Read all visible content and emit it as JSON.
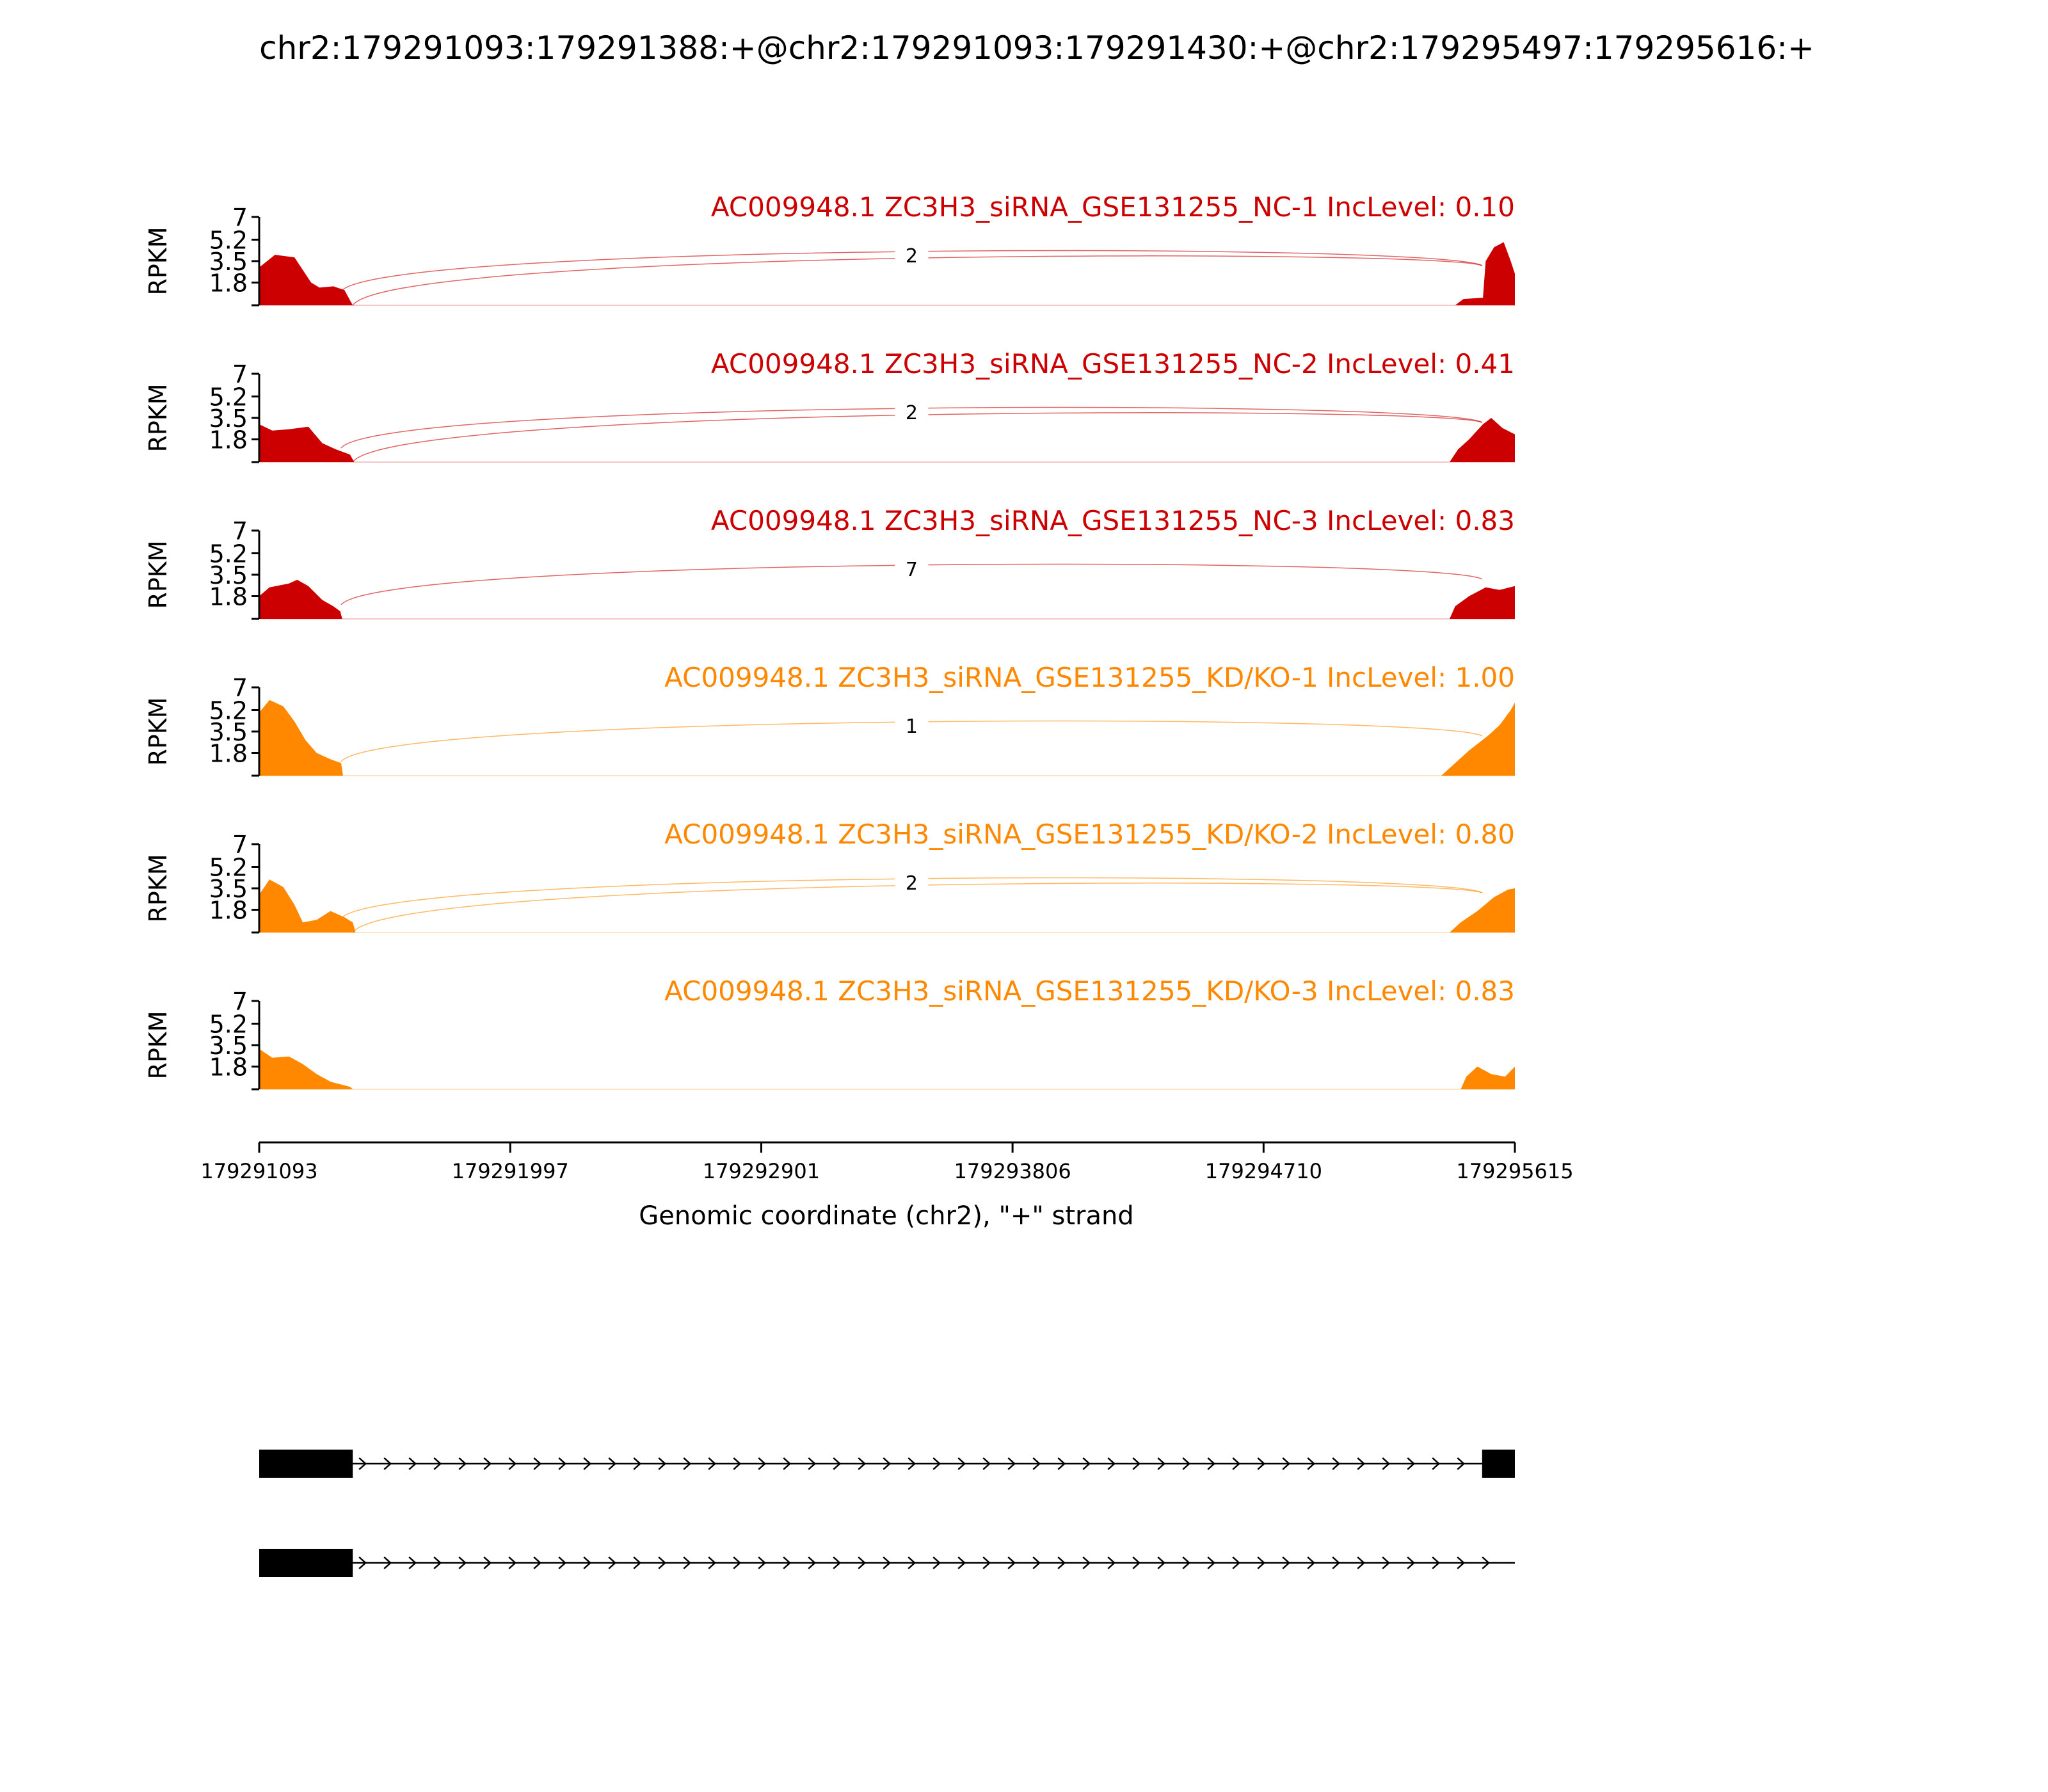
{
  "chart_data": {
    "type": "area",
    "title": "chr2:179291093:179291388:+@chr2:179291093:179291430:+@chr2:179295497:179295616:+",
    "xlabel": "Genomic coordinate (chr2), \"+\" strand",
    "ylabel": "RPKM",
    "xlim": [
      179291093,
      179295615
    ],
    "ylim": [
      0,
      7
    ],
    "x_ticks": [
      "179291093",
      "179291997",
      "179292901",
      "179293806",
      "179294710",
      "179295615"
    ],
    "x_tick_values": [
      179291093,
      179291997,
      179292901,
      179293806,
      179294710,
      179295615
    ],
    "y_ticks": [
      "7",
      "5.2",
      "3.5",
      "1.8"
    ],
    "y_tick_values": [
      7,
      5.2,
      3.5,
      1.8
    ],
    "colors": {
      "NC": "#cc0000",
      "KD": "#ff8800"
    },
    "series": [
      {
        "name": "AC009948.1 ZC3H3_siRNA_GSE131255_NC-1 IncLevel: 0.10",
        "color": "#cc0000",
        "coverage": [
          [
            179291093,
            3.0
          ],
          [
            179291150,
            4.0
          ],
          [
            179291220,
            3.8
          ],
          [
            179291250,
            2.8
          ],
          [
            179291280,
            1.8
          ],
          [
            179291310,
            1.4
          ],
          [
            179291360,
            1.5
          ],
          [
            179291400,
            1.2
          ],
          [
            179291430,
            0.0
          ],
          [
            179295400,
            0.0
          ],
          [
            179295430,
            0.5
          ],
          [
            179295500,
            0.6
          ],
          [
            179295510,
            3.5
          ],
          [
            179295540,
            4.6
          ],
          [
            179295575,
            5.0
          ],
          [
            179295600,
            3.5
          ],
          [
            179295615,
            2.5
          ]
        ],
        "junctions": [
          {
            "start": 179291388,
            "end": 179295497,
            "count": "2"
          },
          {
            "start": 179291430,
            "end": 179295497,
            "count": "2"
          }
        ]
      },
      {
        "name": "AC009948.1 ZC3H3_siRNA_GSE131255_NC-2 IncLevel: 0.41",
        "color": "#cc0000",
        "coverage": [
          [
            179291093,
            3.0
          ],
          [
            179291140,
            2.5
          ],
          [
            179291200,
            2.6
          ],
          [
            179291270,
            2.8
          ],
          [
            179291320,
            1.5
          ],
          [
            179291370,
            1.0
          ],
          [
            179291420,
            0.6
          ],
          [
            179291435,
            0.0
          ],
          [
            179295380,
            0.0
          ],
          [
            179295410,
            1.0
          ],
          [
            179295450,
            1.8
          ],
          [
            179295500,
            3.0
          ],
          [
            179295530,
            3.5
          ],
          [
            179295570,
            2.7
          ],
          [
            179295615,
            2.2
          ]
        ],
        "junctions": [
          {
            "start": 179291388,
            "end": 179295497,
            "count": "2"
          },
          {
            "start": 179291430,
            "end": 179295497,
            "count": "2"
          }
        ]
      },
      {
        "name": "AC009948.1 ZC3H3_siRNA_GSE131255_NC-3 IncLevel: 0.83",
        "color": "#cc0000",
        "coverage": [
          [
            179291093,
            1.8
          ],
          [
            179291130,
            2.5
          ],
          [
            179291200,
            2.8
          ],
          [
            179291230,
            3.1
          ],
          [
            179291270,
            2.6
          ],
          [
            179291320,
            1.5
          ],
          [
            179291360,
            1.0
          ],
          [
            179291385,
            0.6
          ],
          [
            179291392,
            0.0
          ],
          [
            179295380,
            0.0
          ],
          [
            179295400,
            1.0
          ],
          [
            179295450,
            1.8
          ],
          [
            179295510,
            2.5
          ],
          [
            179295560,
            2.3
          ],
          [
            179295615,
            2.6
          ]
        ],
        "junctions": [
          {
            "start": 179291388,
            "end": 179295497,
            "count": "7"
          }
        ]
      },
      {
        "name": "AC009948.1 ZC3H3_siRNA_GSE131255_KD/KO-1 IncLevel: 1.00",
        "color": "#ff8800",
        "coverage": [
          [
            179291093,
            5.0
          ],
          [
            179291130,
            6.0
          ],
          [
            179291180,
            5.5
          ],
          [
            179291220,
            4.3
          ],
          [
            179291260,
            2.8
          ],
          [
            179291300,
            1.8
          ],
          [
            179291350,
            1.3
          ],
          [
            179291388,
            1.0
          ],
          [
            179291395,
            0.0
          ],
          [
            179295350,
            0.0
          ],
          [
            179295390,
            0.8
          ],
          [
            179295450,
            2.0
          ],
          [
            179295520,
            3.2
          ],
          [
            179295560,
            4.0
          ],
          [
            179295600,
            5.2
          ],
          [
            179295615,
            5.8
          ]
        ],
        "junctions": [
          {
            "start": 179291388,
            "end": 179295497,
            "count": "1"
          }
        ]
      },
      {
        "name": "AC009948.1 ZC3H3_siRNA_GSE131255_KD/KO-2 IncLevel: 0.80",
        "color": "#ff8800",
        "coverage": [
          [
            179291093,
            3.0
          ],
          [
            179291130,
            4.2
          ],
          [
            179291180,
            3.6
          ],
          [
            179291220,
            2.2
          ],
          [
            179291250,
            0.8
          ],
          [
            179291300,
            1.0
          ],
          [
            179291350,
            1.7
          ],
          [
            179291400,
            1.2
          ],
          [
            179291430,
            0.8
          ],
          [
            179291440,
            0.0
          ],
          [
            179295380,
            0.0
          ],
          [
            179295420,
            0.8
          ],
          [
            179295480,
            1.7
          ],
          [
            179295540,
            2.8
          ],
          [
            179295590,
            3.4
          ],
          [
            179295615,
            3.5
          ]
        ],
        "junctions": [
          {
            "start": 179291388,
            "end": 179295497,
            "count": "2"
          },
          {
            "start": 179291430,
            "end": 179295497,
            "count": "2"
          }
        ]
      },
      {
        "name": "AC009948.1 ZC3H3_siRNA_GSE131255_KD/KO-3 IncLevel: 0.83",
        "color": "#ff8800",
        "coverage": [
          [
            179291093,
            3.2
          ],
          [
            179291140,
            2.5
          ],
          [
            179291200,
            2.6
          ],
          [
            179291250,
            2.0
          ],
          [
            179291300,
            1.2
          ],
          [
            179291350,
            0.6
          ],
          [
            179291420,
            0.2
          ],
          [
            179291430,
            0.0
          ],
          [
            179295420,
            0.0
          ],
          [
            179295440,
            1.0
          ],
          [
            179295480,
            1.8
          ],
          [
            179295530,
            1.2
          ],
          [
            179295580,
            1.0
          ],
          [
            179295615,
            1.8
          ]
        ],
        "junctions": []
      }
    ],
    "isoforms": [
      {
        "exons": [
          [
            179291093,
            179291430
          ],
          [
            179295497,
            179295615
          ]
        ]
      },
      {
        "exons": [
          [
            179291093,
            179291430
          ]
        ]
      }
    ]
  }
}
